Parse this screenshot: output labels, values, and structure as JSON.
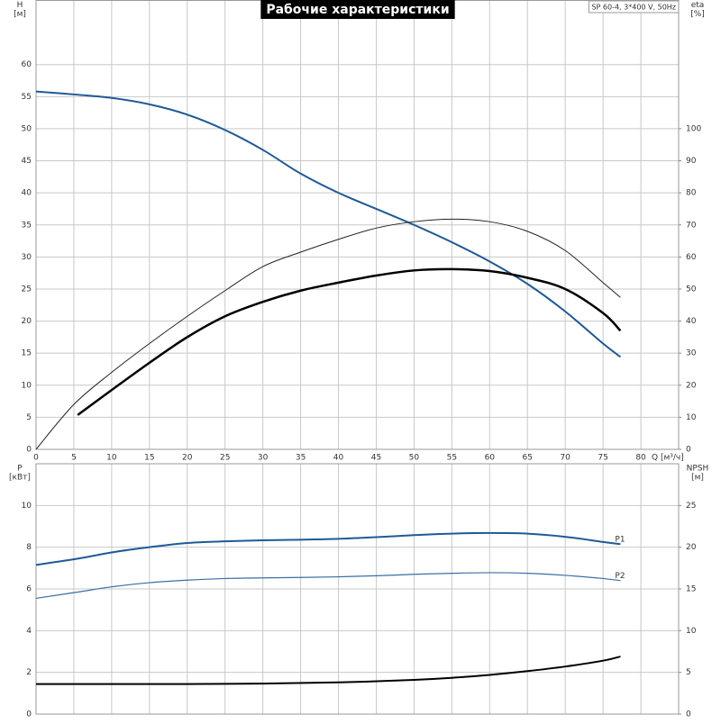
{
  "chart_data": [
    {
      "type": "line",
      "title": "Рабочие характеристики",
      "annotation": "SP 60-4, 3*400 V, 50Hz",
      "x_label": "Q [м³/ч]",
      "y_label": [
        "H",
        "[м]"
      ],
      "y2_label": [
        "eta",
        "[%]"
      ],
      "xlim": [
        0,
        85
      ],
      "xticks": [
        0,
        5,
        10,
        15,
        20,
        25,
        30,
        35,
        40,
        45,
        50,
        55,
        60,
        65,
        70,
        75,
        80
      ],
      "ylim": [
        0,
        70
      ],
      "yticks": [
        0,
        5,
        10,
        15,
        20,
        25,
        30,
        35,
        40,
        45,
        50,
        55,
        60
      ],
      "y2lim": [
        0,
        140
      ],
      "y2ticks": [
        0,
        10,
        20,
        30,
        40,
        50,
        60,
        70,
        80,
        90,
        100
      ],
      "grid": true,
      "series": [
        {
          "color": "#1f5a96",
          "width": 2,
          "x": [
            0,
            5.5,
            10,
            15,
            20,
            25,
            30,
            35,
            40,
            45,
            50,
            55,
            60,
            65,
            70,
            75,
            77.3
          ],
          "values": [
            55.8,
            55.3,
            54.8,
            53.8,
            52.2,
            49.8,
            46.7,
            43.0,
            40.0,
            37.5,
            35.0,
            32.3,
            29.3,
            25.8,
            21.5,
            16.5,
            14.4
          ]
        },
        {
          "color": "#222222",
          "width": 1,
          "axis": "y2",
          "x": [
            0,
            5,
            10,
            15,
            20,
            25,
            30,
            35,
            40,
            45,
            50,
            55,
            60,
            65,
            70,
            75,
            77.3
          ],
          "values": [
            0,
            14,
            24,
            33,
            41.5,
            49.5,
            57,
            61.5,
            65.5,
            69,
            71,
            71.8,
            71,
            68,
            62,
            52,
            47.4
          ]
        },
        {
          "color": "#000000",
          "width": 2.5,
          "axis": "y2",
          "x": [
            5.5,
            10,
            15,
            20,
            25,
            30,
            35,
            40,
            45,
            50,
            55,
            60,
            65,
            70,
            75,
            77.3
          ],
          "values": [
            10.7,
            18.5,
            27,
            35,
            41.5,
            46,
            49.5,
            52,
            54.2,
            55.8,
            56.2,
            55.6,
            53.5,
            50,
            42.5,
            37
          ]
        }
      ]
    },
    {
      "type": "line",
      "y_label": [
        "P",
        "[кВт]"
      ],
      "y2_label": [
        "NPSH",
        "[м]"
      ],
      "xlim": [
        0,
        85
      ],
      "xticks": [
        0,
        5,
        10,
        15,
        20,
        25,
        30,
        35,
        40,
        45,
        50,
        55,
        60,
        65,
        70,
        75,
        80
      ],
      "xtick_labels": false,
      "ylim": [
        0,
        12
      ],
      "yticks": [
        0,
        2,
        4,
        6,
        8,
        10
      ],
      "y2lim": [
        0,
        30
      ],
      "y2ticks": [
        0,
        5,
        10,
        15,
        20,
        25
      ],
      "grid": true,
      "series": [
        {
          "name": "P1",
          "color": "#1f5a96",
          "width": 2,
          "x": [
            0,
            5.5,
            10,
            15,
            20,
            25,
            30,
            35,
            40,
            45,
            50,
            55,
            60,
            65,
            70,
            75,
            77.3
          ],
          "values": [
            7.15,
            7.45,
            7.75,
            8.0,
            8.2,
            8.28,
            8.33,
            8.36,
            8.4,
            8.48,
            8.58,
            8.65,
            8.68,
            8.65,
            8.5,
            8.25,
            8.15
          ]
        },
        {
          "name": "P2",
          "color": "#3a6fa5",
          "width": 1.2,
          "x": [
            0,
            5.5,
            10,
            15,
            20,
            25,
            30,
            35,
            40,
            45,
            50,
            55,
            60,
            65,
            70,
            75,
            77.3
          ],
          "values": [
            5.55,
            5.85,
            6.1,
            6.3,
            6.42,
            6.5,
            6.53,
            6.55,
            6.58,
            6.63,
            6.7,
            6.75,
            6.78,
            6.75,
            6.65,
            6.5,
            6.4
          ]
        },
        {
          "color": "#000000",
          "width": 2,
          "axis": "y2",
          "x": [
            0,
            5.5,
            10,
            20,
            30,
            40,
            50,
            55,
            60,
            65,
            70,
            75,
            77.3
          ],
          "values": [
            3.6,
            3.6,
            3.6,
            3.6,
            3.65,
            3.8,
            4.1,
            4.35,
            4.7,
            5.15,
            5.7,
            6.4,
            6.9
          ]
        }
      ]
    }
  ]
}
